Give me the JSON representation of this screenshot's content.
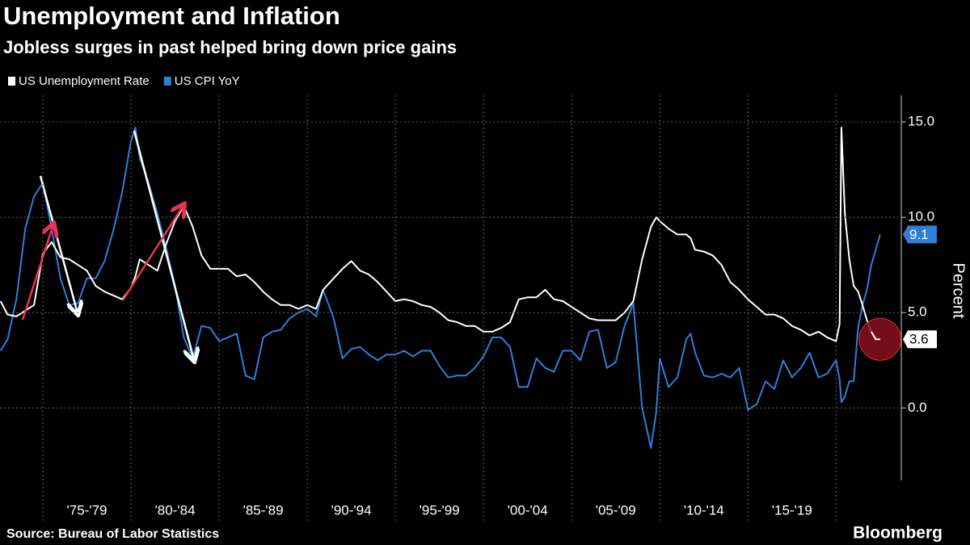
{
  "chart_data": {
    "type": "line",
    "title": "Unemployment and Inflation",
    "subtitle": "Jobless surges in past helped bring down price gains",
    "y_label": "Percent",
    "source": "Source: Bureau of Labor Statistics",
    "brand": "Bloomberg",
    "x": [
      1972.6,
      1973.0,
      1973.5,
      1974.0,
      1974.5,
      1975.0,
      1975.5,
      1976.0,
      1976.5,
      1977.0,
      1977.5,
      1978.0,
      1978.5,
      1979.0,
      1979.5,
      1980.0,
      1980.25,
      1980.5,
      1981.0,
      1981.5,
      1982.0,
      1982.5,
      1983.0,
      1983.5,
      1984.0,
      1984.5,
      1985.0,
      1985.5,
      1986.0,
      1986.5,
      1987.0,
      1987.5,
      1988.0,
      1988.5,
      1989.0,
      1989.5,
      1990.0,
      1990.5,
      1990.9,
      1991.5,
      1992.0,
      1992.5,
      1993.0,
      1993.5,
      1994.0,
      1994.5,
      1995.0,
      1995.5,
      1996.0,
      1996.5,
      1997.0,
      1997.5,
      1998.0,
      1998.5,
      1999.0,
      1999.5,
      2000.0,
      2000.5,
      2001.0,
      2001.5,
      2002.0,
      2002.5,
      2003.0,
      2003.5,
      2004.0,
      2004.5,
      2005.0,
      2005.5,
      2006.0,
      2006.5,
      2007.0,
      2007.5,
      2008.0,
      2008.5,
      2009.0,
      2009.5,
      2009.8,
      2010.0,
      2010.5,
      2011.0,
      2011.5,
      2011.75,
      2012.0,
      2012.5,
      2013.0,
      2013.5,
      2014.0,
      2014.5,
      2015.0,
      2015.5,
      2016.0,
      2016.5,
      2017.0,
      2017.5,
      2018.0,
      2018.5,
      2019.0,
      2019.5,
      2020.0,
      2020.2,
      2020.3,
      2020.5,
      2020.75,
      2021.0,
      2021.25,
      2021.5,
      2021.75,
      2022.0,
      2022.25,
      2022.5
    ],
    "series": [
      {
        "name": "US Unemployment Rate",
        "color": "#ffffff",
        "values": [
          5.6,
          4.9,
          4.8,
          5.1,
          5.4,
          8.1,
          8.7,
          7.9,
          7.8,
          7.5,
          7.2,
          6.4,
          6.1,
          5.9,
          5.7,
          6.3,
          6.9,
          7.8,
          7.5,
          7.2,
          8.6,
          9.8,
          10.6,
          9.5,
          8.0,
          7.3,
          7.3,
          7.3,
          6.9,
          7.0,
          6.6,
          6.1,
          5.7,
          5.4,
          5.4,
          5.2,
          5.4,
          5.2,
          6.2,
          6.8,
          7.3,
          7.7,
          7.2,
          7.0,
          6.6,
          6.1,
          5.6,
          5.7,
          5.6,
          5.4,
          5.3,
          5.0,
          4.6,
          4.5,
          4.3,
          4.3,
          4.0,
          4.0,
          4.2,
          4.5,
          5.7,
          5.8,
          5.8,
          6.2,
          5.7,
          5.6,
          5.3,
          5.0,
          4.7,
          4.6,
          4.6,
          4.6,
          5.0,
          5.6,
          7.8,
          9.5,
          10.0,
          9.8,
          9.4,
          9.1,
          9.1,
          8.9,
          8.3,
          8.2,
          8.0,
          7.5,
          6.6,
          6.2,
          5.7,
          5.3,
          4.9,
          4.9,
          4.7,
          4.3,
          4.1,
          3.8,
          4.0,
          3.7,
          3.5,
          4.4,
          14.7,
          10.2,
          7.8,
          6.4,
          6.1,
          5.4,
          4.6,
          4.0,
          3.6,
          3.6
        ]
      },
      {
        "name": "US CPI YoY",
        "color": "#2f7ed8",
        "values": [
          3.0,
          3.6,
          5.7,
          9.4,
          11.1,
          11.8,
          9.4,
          6.8,
          5.4,
          5.5,
          6.8,
          6.8,
          7.7,
          9.3,
          11.3,
          14.0,
          14.7,
          13.1,
          11.8,
          10.2,
          8.4,
          6.4,
          3.7,
          2.6,
          4.3,
          4.2,
          3.5,
          3.7,
          3.9,
          1.7,
          1.5,
          3.7,
          4.0,
          4.1,
          4.7,
          5.0,
          5.2,
          4.8,
          6.2,
          4.7,
          2.6,
          3.1,
          3.2,
          2.8,
          2.5,
          2.8,
          2.8,
          3.0,
          2.7,
          3.0,
          3.0,
          2.2,
          1.6,
          1.7,
          1.7,
          2.1,
          2.7,
          3.7,
          3.7,
          3.2,
          1.1,
          1.1,
          2.6,
          2.1,
          1.9,
          3.0,
          3.0,
          2.5,
          4.0,
          4.1,
          2.1,
          2.4,
          4.3,
          5.5,
          0.0,
          -2.1,
          -0.2,
          2.6,
          1.1,
          1.6,
          3.6,
          3.9,
          2.9,
          1.7,
          1.6,
          1.8,
          1.6,
          2.1,
          -0.1,
          0.2,
          1.4,
          1.0,
          2.5,
          1.6,
          2.1,
          2.9,
          1.6,
          1.8,
          2.5,
          1.5,
          0.3,
          0.6,
          1.4,
          1.4,
          4.2,
          5.4,
          6.2,
          7.5,
          8.3,
          9.1
        ]
      }
    ],
    "xlim": [
      1972.57,
      2023.7
    ],
    "xticks": [
      1975,
      1980,
      1985,
      1990,
      1995,
      2000,
      2005,
      2010,
      2015,
      2020
    ],
    "xtick_labels": [
      "'75-'79",
      "'80-'84",
      "'85-'89",
      "'90-'94",
      "'95-'99",
      "'00-'04",
      "'05-'09",
      "'10-'14",
      "'15-'19"
    ],
    "ylim": [
      -3.8,
      16.4
    ],
    "yticks": [
      {
        "value": 0,
        "label": "0.0"
      },
      {
        "value": 5,
        "label": "5.0"
      },
      {
        "value": 10,
        "label": "10.0"
      },
      {
        "value": 15,
        "label": "15.0"
      }
    ],
    "grid": true
  }
}
